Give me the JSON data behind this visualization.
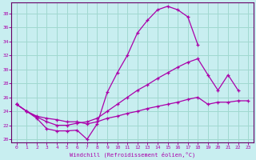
{
  "xlabel": "Windchill (Refroidissement éolien,°C)",
  "bg_color": "#c8eef0",
  "grid_color": "#a0d8d0",
  "line_color": "#aa00aa",
  "spine_color": "#660066",
  "xlim": [
    -0.5,
    23.5
  ],
  "ylim": [
    19.5,
    39.5
  ],
  "xticks": [
    0,
    1,
    2,
    3,
    4,
    5,
    6,
    7,
    8,
    9,
    10,
    11,
    12,
    13,
    14,
    15,
    16,
    17,
    18,
    19,
    20,
    21,
    22,
    23
  ],
  "yticks": [
    20,
    22,
    24,
    26,
    28,
    30,
    32,
    34,
    36,
    38
  ],
  "line1_x": [
    0,
    1,
    2,
    3,
    4,
    5,
    6,
    7,
    8,
    9,
    10,
    11,
    12,
    13,
    14,
    15,
    16,
    17,
    18
  ],
  "line1_y": [
    25.0,
    24.0,
    23.0,
    21.5,
    21.2,
    21.2,
    21.3,
    20.0,
    22.2,
    26.7,
    29.5,
    32.0,
    35.2,
    37.0,
    38.5,
    39.0,
    38.5,
    37.5,
    33.5
  ],
  "line2_x": [
    0,
    1,
    2,
    3,
    4,
    5,
    6,
    7,
    8,
    9,
    10,
    11,
    12,
    13,
    14,
    15,
    16,
    17,
    18,
    19,
    20,
    21,
    22
  ],
  "line2_y": [
    25.0,
    24.0,
    23.2,
    22.5,
    22.0,
    22.0,
    22.3,
    22.5,
    23.0,
    24.0,
    25.0,
    26.0,
    27.0,
    27.8,
    28.7,
    29.5,
    30.3,
    31.0,
    31.5,
    29.2,
    27.0,
    29.2,
    27.0
  ],
  "line3_x": [
    0,
    1,
    2,
    3,
    4,
    5,
    6,
    7,
    8,
    9,
    10,
    11,
    12,
    13,
    14,
    15,
    16,
    17,
    18,
    19,
    20,
    21,
    22,
    23
  ],
  "line3_y": [
    25.0,
    24.0,
    23.3,
    23.0,
    22.8,
    22.5,
    22.5,
    22.2,
    22.5,
    23.0,
    23.3,
    23.7,
    24.0,
    24.4,
    24.7,
    25.0,
    25.3,
    25.7,
    26.0,
    25.0,
    25.3,
    25.3,
    25.5,
    25.5
  ]
}
